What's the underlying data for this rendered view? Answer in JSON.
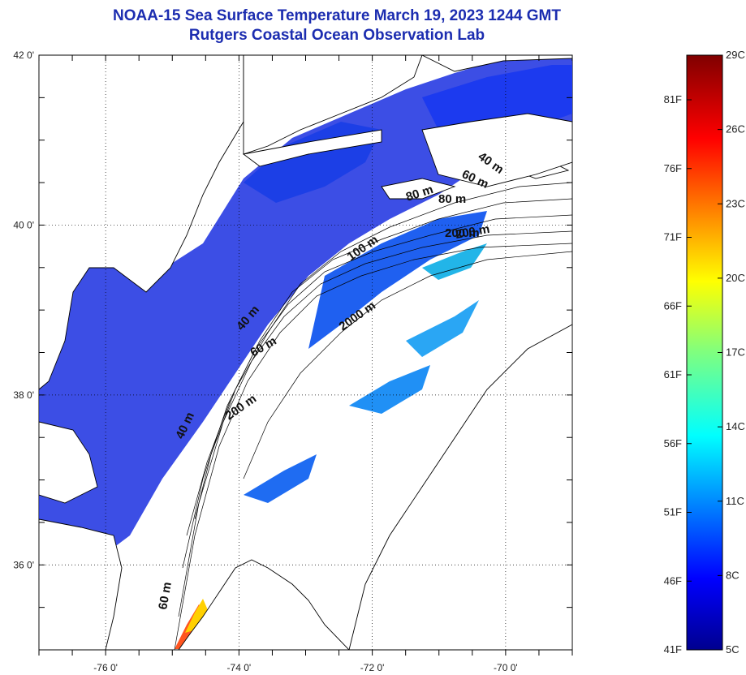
{
  "title": {
    "line1": "NOAA-15 Sea Surface Temperature March 19, 2023 1244 GMT",
    "line2": "Rutgers Coastal Ocean Observation Lab"
  },
  "map": {
    "lon_range": [
      -77.0,
      -69.0
    ],
    "lat_range": [
      35.0,
      42.0
    ],
    "lon_ticks": [
      {
        "value": -76,
        "label": "-76 0'"
      },
      {
        "value": -74,
        "label": "-74 0'"
      },
      {
        "value": -72,
        "label": "-72 0'"
      },
      {
        "value": -70,
        "label": "-70 0'"
      }
    ],
    "lat_ticks": [
      {
        "value": 42,
        "label": "42 0'"
      },
      {
        "value": 40,
        "label": "40 0'"
      },
      {
        "value": 38,
        "label": "38 0'"
      },
      {
        "value": 36,
        "label": "36 0'"
      }
    ],
    "grid": "dotted",
    "depth_labels": [
      "40 m",
      "60 m",
      "80 m",
      "40 m",
      "60 m",
      "200 m",
      "40 m",
      "60 m",
      "80 m",
      "100 m",
      "200 m",
      "2000 m",
      "200 m"
    ]
  },
  "colorbar": {
    "celsius_labels": [
      "29C",
      "26C",
      "23C",
      "20C",
      "17C",
      "14C",
      "11C",
      "8C",
      "5C"
    ],
    "fahrenheit_labels": [
      "81F",
      "76F",
      "71F",
      "66F",
      "61F",
      "56F",
      "51F",
      "46F",
      "41F"
    ],
    "colormap": "jet",
    "min_c": 5,
    "max_c": 29
  },
  "colors": {
    "title": "#1c2db0",
    "sea_cold": "#1a2fe0",
    "sea_mid": "#1f5ef0",
    "land": "#ffffff",
    "coast": "#000000"
  }
}
